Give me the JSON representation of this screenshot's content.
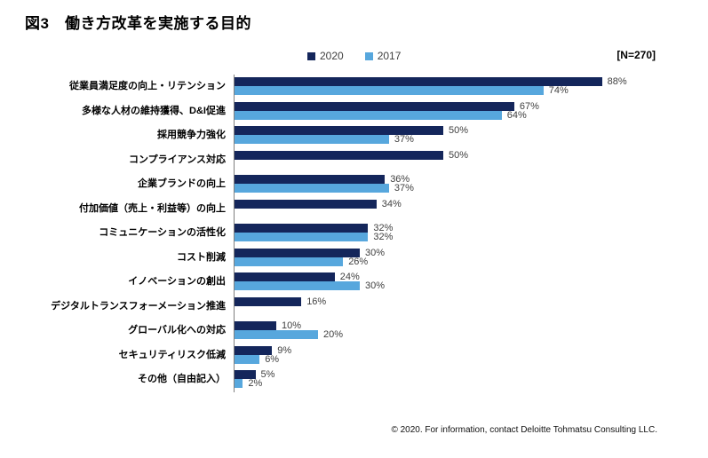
{
  "title": "図3　働き方改革を実施する目的",
  "n_label": "[N=270]",
  "footer": "© 2020. For information, contact Deloitte Tohmatsu Consulting LLC.",
  "colors": {
    "bar_2020": "#14265B",
    "bar_2017": "#57A7DD",
    "axis_line": "#7F7F7F",
    "value_label": "#404040",
    "legend_text": "#404040"
  },
  "chart_data": {
    "type": "bar",
    "orientation": "horizontal",
    "title": "図3 働き方改革を実施する目的",
    "legend_position": "top",
    "sample_size": "[N=270]",
    "value_suffix": "%",
    "xlim": [
      0,
      100
    ],
    "grid": false,
    "categories": [
      "従業員満足度の向上・リテンション",
      "多様な人材の維持獲得、D&I促進",
      "採用競争力強化",
      "コンプライアンス対応",
      "企業ブランドの向上",
      "付加価値（売上・利益等）の向上",
      "コミュニケーションの活性化",
      "コスト削減",
      "イノベーションの創出",
      "デジタルトランスフォーメーション推進",
      "グローバル化への対応",
      "セキュリティリスク低減",
      "その他（自由記入）"
    ],
    "series": [
      {
        "name": "2020",
        "color": "#14265B",
        "values": [
          88,
          67,
          50,
          50,
          36,
          34,
          32,
          30,
          24,
          16,
          10,
          9,
          5
        ]
      },
      {
        "name": "2017",
        "color": "#57A7DD",
        "values": [
          74,
          64,
          37,
          null,
          37,
          null,
          32,
          26,
          30,
          null,
          20,
          6,
          2
        ]
      }
    ]
  }
}
